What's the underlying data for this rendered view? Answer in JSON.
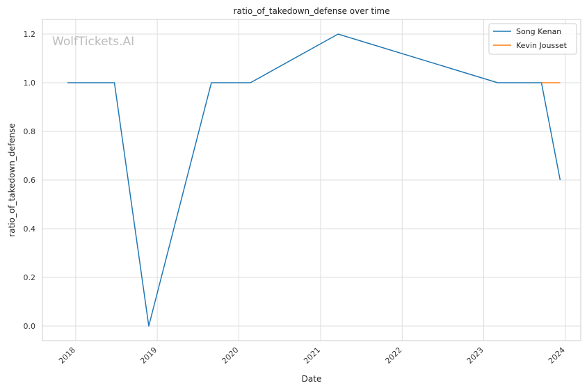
{
  "chart_data": {
    "type": "line",
    "title": "ratio_of_takedown_defense over time",
    "xlabel": "Date",
    "ylabel": "ratio_of_takedown_defense",
    "watermark": "WolfTickets.AI",
    "xlim": [
      "2017-08-05",
      "2024-03-10"
    ],
    "ylim": [
      -0.06,
      1.26
    ],
    "x_ticks": [
      {
        "date": "2018-01-01",
        "label": "2018"
      },
      {
        "date": "2019-01-01",
        "label": "2019"
      },
      {
        "date": "2020-01-01",
        "label": "2020"
      },
      {
        "date": "2021-01-01",
        "label": "2021"
      },
      {
        "date": "2022-01-01",
        "label": "2022"
      },
      {
        "date": "2023-01-01",
        "label": "2023"
      },
      {
        "date": "2024-01-01",
        "label": "2024"
      }
    ],
    "y_ticks": [
      {
        "value": 0.0,
        "label": "0.0"
      },
      {
        "value": 0.2,
        "label": "0.2"
      },
      {
        "value": 0.4,
        "label": "0.4"
      },
      {
        "value": 0.6,
        "label": "0.6"
      },
      {
        "value": 0.8,
        "label": "0.8"
      },
      {
        "value": 1.0,
        "label": "1.0"
      },
      {
        "value": 1.2,
        "label": "1.2"
      }
    ],
    "grid": true,
    "legend_position": "top-right",
    "series": [
      {
        "name": "Song Kenan",
        "color": "#1f77b4",
        "points": [
          {
            "x": "2017-11-25",
            "y": 1.0
          },
          {
            "x": "2018-06-23",
            "y": 1.0
          },
          {
            "x": "2018-11-24",
            "y": 0.0
          },
          {
            "x": "2019-08-31",
            "y": 1.0
          },
          {
            "x": "2020-02-22",
            "y": 1.0
          },
          {
            "x": "2021-03-20",
            "y": 1.2
          },
          {
            "x": "2023-03-04",
            "y": 1.0
          },
          {
            "x": "2023-09-16",
            "y": 1.0
          },
          {
            "x": "2023-12-09",
            "y": 0.6
          }
        ]
      },
      {
        "name": "Kevin Jousset",
        "color": "#ff7f0e",
        "points": [
          {
            "x": "2023-09-16",
            "y": 1.0
          },
          {
            "x": "2023-12-09",
            "y": 1.0
          }
        ]
      }
    ]
  }
}
